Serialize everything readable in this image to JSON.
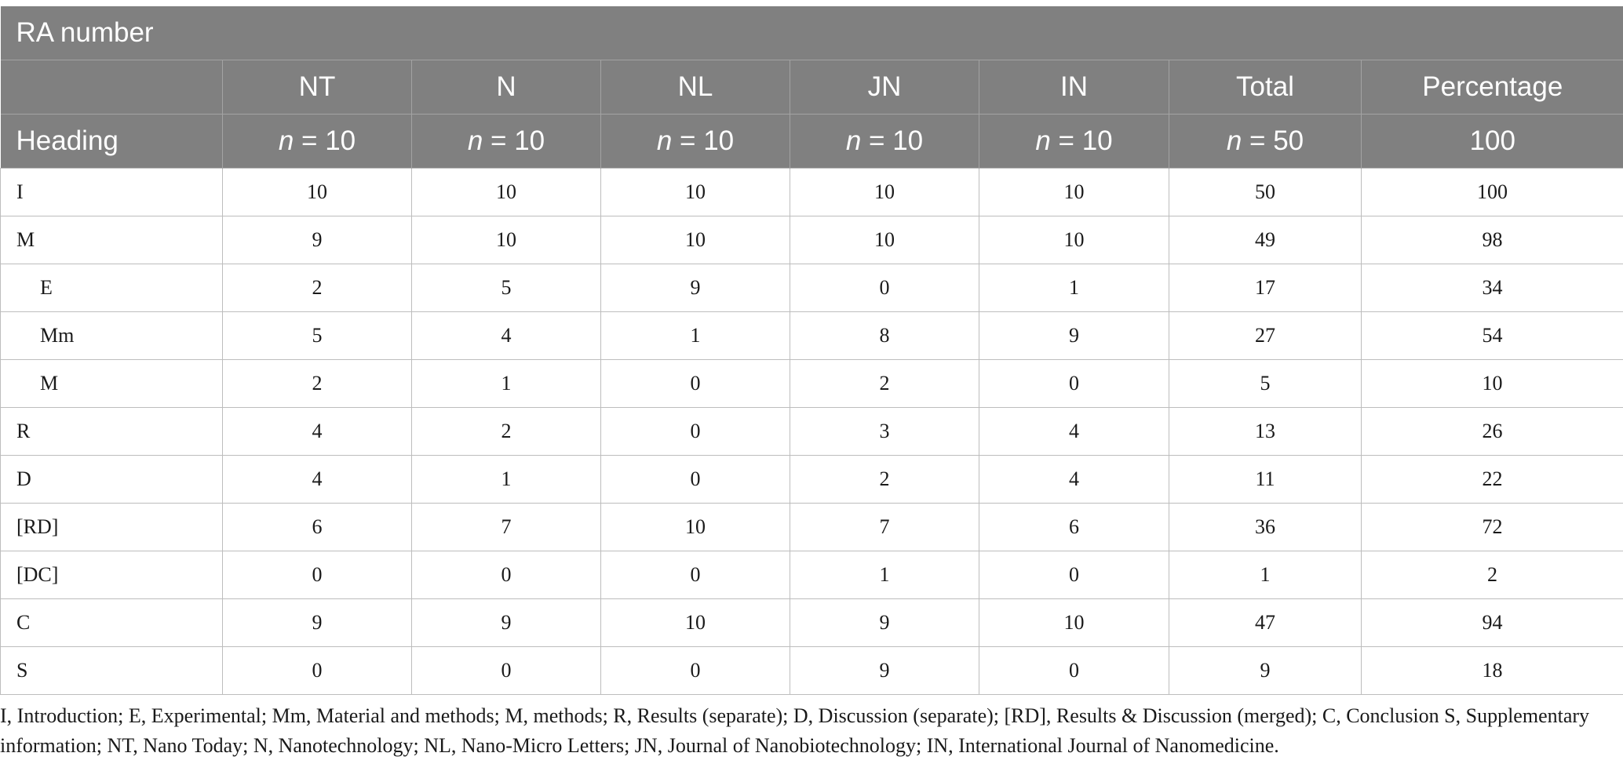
{
  "table": {
    "title": "RA number",
    "heading_label": "Heading",
    "columns": [
      {
        "label": "NT",
        "n_var": "n",
        "n_rest": " = 10"
      },
      {
        "label": "N",
        "n_var": "n",
        "n_rest": " = 10"
      },
      {
        "label": "NL",
        "n_var": "n",
        "n_rest": " = 10"
      },
      {
        "label": "JN",
        "n_var": "n",
        "n_rest": " = 10"
      },
      {
        "label": "IN",
        "n_var": "n",
        "n_rest": " = 10"
      },
      {
        "label": "Total",
        "n_var": "n",
        "n_rest": " = 50"
      },
      {
        "label": "Percentage",
        "n_var": "",
        "n_rest": "100"
      }
    ],
    "rows": [
      {
        "label": "I",
        "indent": false,
        "values": [
          "10",
          "10",
          "10",
          "10",
          "10",
          "50",
          "100"
        ]
      },
      {
        "label": "M",
        "indent": false,
        "values": [
          "9",
          "10",
          "10",
          "10",
          "10",
          "49",
          "98"
        ]
      },
      {
        "label": "E",
        "indent": true,
        "values": [
          "2",
          "5",
          "9",
          "0",
          "1",
          "17",
          "34"
        ]
      },
      {
        "label": "Mm",
        "indent": true,
        "values": [
          "5",
          "4",
          "1",
          "8",
          "9",
          "27",
          "54"
        ]
      },
      {
        "label": "M",
        "indent": true,
        "values": [
          "2",
          "1",
          "0",
          "2",
          "0",
          "5",
          "10"
        ]
      },
      {
        "label": "R",
        "indent": false,
        "values": [
          "4",
          "2",
          "0",
          "3",
          "4",
          "13",
          "26"
        ]
      },
      {
        "label": "D",
        "indent": false,
        "values": [
          "4",
          "1",
          "0",
          "2",
          "4",
          "11",
          "22"
        ]
      },
      {
        "label": "[RD]",
        "indent": false,
        "values": [
          "6",
          "7",
          "10",
          "7",
          "6",
          "36",
          "72"
        ]
      },
      {
        "label": "[DC]",
        "indent": false,
        "values": [
          "0",
          "0",
          "0",
          "1",
          "0",
          "1",
          "2"
        ]
      },
      {
        "label": "C",
        "indent": false,
        "values": [
          "9",
          "9",
          "10",
          "9",
          "10",
          "47",
          "94"
        ]
      },
      {
        "label": "S",
        "indent": false,
        "values": [
          "0",
          "0",
          "0",
          "9",
          "0",
          "9",
          "18"
        ]
      }
    ],
    "footnote": "I, Introduction; E, Experimental; Mm, Material and methods; M, methods; R, Results (separate); D, Discussion (separate); [RD], Results & Discussion (merged); C, Conclusion S, Supplementary information; NT, Nano Today; N, Nanotechnology; NL, Nano-Micro Letters; JN, Journal of Nanobiotechnology; IN, International Journal of Nanomedicine."
  },
  "colors": {
    "header_bg": "#808080",
    "header_text": "#ffffff",
    "grid_line": "#bdbdbd",
    "body_text": "#1a1a1a"
  }
}
